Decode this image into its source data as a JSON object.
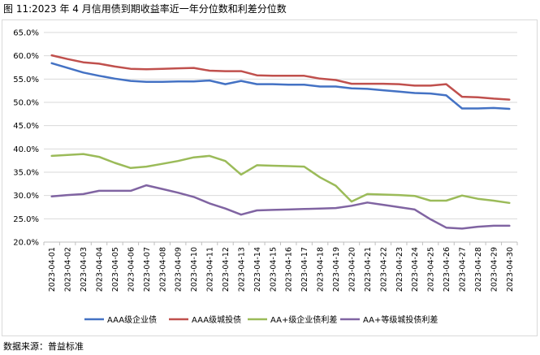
{
  "title": "图 11:2023 年 4 月信用债到期收益率近一年分位数和利差分位数",
  "source": "数据来源：普益标准",
  "chart_data": {
    "type": "line",
    "title": "图 11:2023 年 4 月信用债到期收益率近一年分位数和利差分位数",
    "ylim": [
      20,
      65
    ],
    "yticks": [
      "20.0%",
      "25.0%",
      "30.0%",
      "35.0%",
      "40.0%",
      "45.0%",
      "50.0%",
      "55.0%",
      "60.0%",
      "65.0%"
    ],
    "ytick_values": [
      20,
      25,
      30,
      35,
      40,
      45,
      50,
      55,
      60,
      65
    ],
    "grid": true,
    "legend_position": "bottom",
    "x": [
      "2023-04-01",
      "2023-04-02",
      "2023-04-03",
      "2023-04-04",
      "2023-04-05",
      "2023-04-06",
      "2023-04-07",
      "2023-04-08",
      "2023-04-09",
      "2023-04-10",
      "2023-04-11",
      "2023-04-12",
      "2023-04-13",
      "2023-04-14",
      "2023-04-15",
      "2023-04-16",
      "2023-04-17",
      "2023-04-18",
      "2023-04-19",
      "2023-04-20",
      "2023-04-21",
      "2023-04-22",
      "2023-04-23",
      "2023-04-24",
      "2023-04-25",
      "2023-04-26",
      "2023-04-27",
      "2023-04-28",
      "2023-04-29",
      "2023-04-30"
    ],
    "series": [
      {
        "name": "AAA级企业债",
        "color": "#4472c4",
        "values": [
          58.4,
          57.4,
          56.4,
          55.7,
          55.1,
          54.6,
          54.4,
          54.4,
          54.5,
          54.5,
          54.7,
          53.9,
          54.6,
          53.9,
          53.9,
          53.8,
          53.8,
          53.4,
          53.4,
          53.0,
          52.9,
          52.6,
          52.3,
          52.0,
          51.9,
          51.5,
          48.7,
          48.7,
          48.8,
          48.6
        ]
      },
      {
        "name": "AAA级城投债",
        "color": "#c0504d",
        "values": [
          60.1,
          59.3,
          58.6,
          58.3,
          57.7,
          57.2,
          57.1,
          57.2,
          57.3,
          57.4,
          56.8,
          56.7,
          56.7,
          55.8,
          55.7,
          55.7,
          55.7,
          55.1,
          54.8,
          54.0,
          54.0,
          54.0,
          53.9,
          53.6,
          53.6,
          53.9,
          51.2,
          51.1,
          50.8,
          50.6
        ]
      },
      {
        "name": "AA+级企业债利差",
        "color": "#9bbb59",
        "values": [
          38.5,
          38.7,
          38.9,
          38.3,
          37.0,
          35.9,
          36.2,
          36.8,
          37.4,
          38.2,
          38.5,
          37.4,
          34.5,
          36.5,
          36.4,
          36.3,
          36.2,
          33.9,
          32.1,
          28.7,
          30.3,
          30.2,
          30.1,
          29.9,
          28.9,
          28.9,
          30.0,
          29.3,
          28.9,
          28.4
        ]
      },
      {
        "name": "AA+等级城投债利差",
        "color": "#8064a2",
        "values": [
          29.8,
          30.1,
          30.3,
          31.0,
          31.0,
          31.0,
          32.2,
          31.4,
          30.6,
          29.7,
          28.3,
          27.2,
          25.9,
          26.8,
          26.9,
          27.0,
          27.1,
          27.2,
          27.3,
          27.8,
          28.5,
          28.0,
          27.5,
          27.0,
          24.9,
          23.1,
          22.9,
          23.3,
          23.5,
          23.5
        ]
      }
    ]
  }
}
